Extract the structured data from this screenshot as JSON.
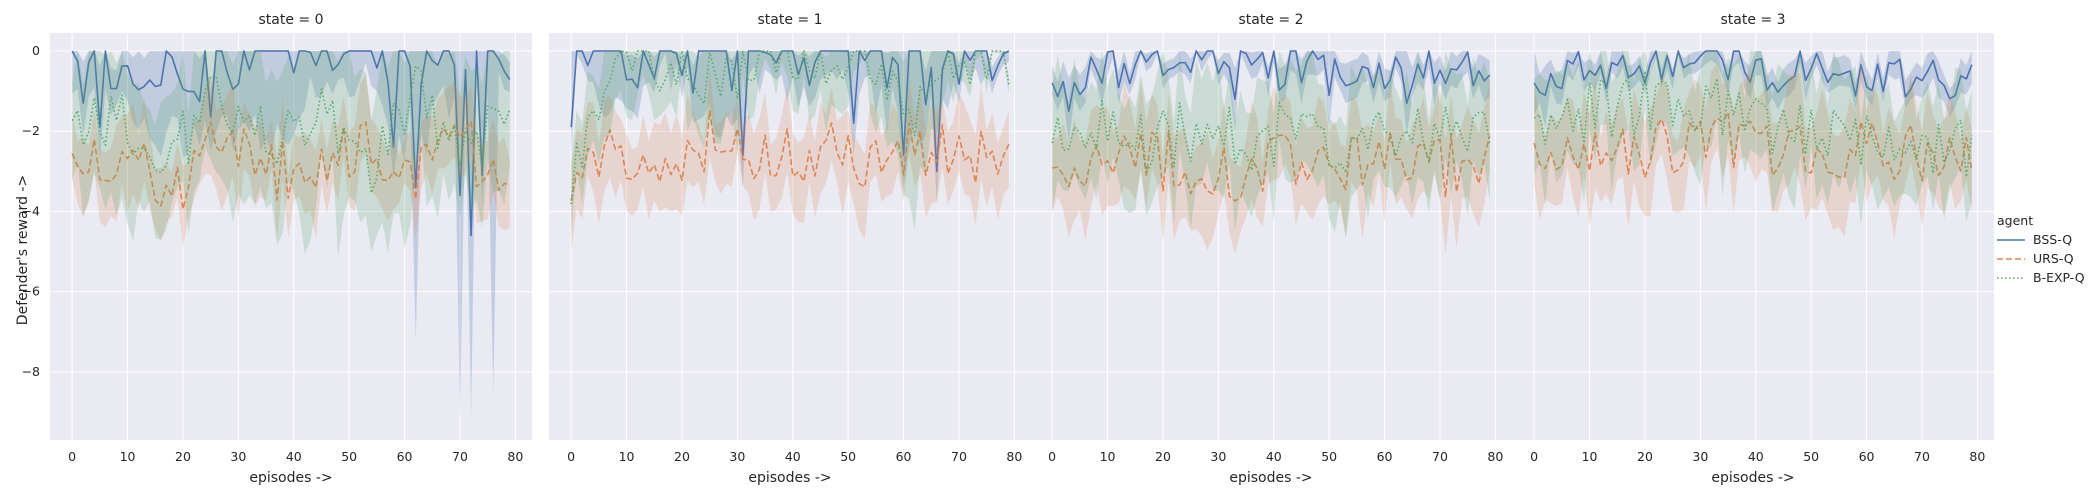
{
  "chart_data": {
    "type": "line",
    "ylabel": "Defender's reward ->",
    "xlabel": "episodes ->",
    "ylim": [
      -9.7,
      0.45
    ],
    "xlim": [
      -4,
      83
    ],
    "xticks": [
      0,
      10,
      20,
      30,
      40,
      50,
      60,
      70,
      80
    ],
    "yticks": [
      0,
      -2,
      -4,
      -6,
      -8
    ],
    "ytick_labels": [
      "0",
      "−2",
      "−4",
      "−6",
      "−8"
    ],
    "grid": true,
    "legend": {
      "title": "agent",
      "placement": "right",
      "entries": [
        "BSS-Q",
        "URS-Q",
        "B-EXP-Q"
      ]
    },
    "colors": {
      "BSS-Q": "#4c72b0",
      "URS-Q": "#dd8452",
      "B-EXP-Q": "#55a868"
    },
    "facet_titles": [
      "state = 0",
      "state = 1",
      "state = 2",
      "state = 3"
    ],
    "panels": [
      {
        "title": "state = 0",
        "series": [
          {
            "name": "BSS-Q",
            "mean_profile": [
              -0.2,
              -0.8,
              -0.3,
              -1.3,
              0,
              -0.6,
              -0.1,
              -0.9,
              0,
              -0.3
            ],
            "band_profile": [
              0.9,
              0.6,
              1.8,
              0.8,
              2.5,
              0.7,
              0.5,
              1.6,
              0.6,
              0.4
            ],
            "dips": [
              [
                2,
                -1.3
              ],
              [
                5,
                -1.9
              ],
              [
                58,
                -2.4
              ],
              [
                62,
                -3.4
              ],
              [
                70,
                -3.6
              ],
              [
                72,
                -4.6
              ],
              [
                74,
                -3.1
              ]
            ],
            "deep": [
              [
                62,
                -7.2
              ],
              [
                70,
                -9.2
              ],
              [
                72,
                -9.1
              ],
              [
                76,
                -8.6
              ]
            ]
          },
          {
            "name": "URS-Q",
            "mean_profile": [
              -2.8,
              -2.4,
              -3.6,
              -2.2,
              -3.1,
              -2.7,
              -2.5,
              -3.3,
              -2.4,
              -3.0
            ],
            "band_profile": [
              0.9,
              1.2,
              0.8,
              1.3,
              0.9,
              1.1,
              1.0,
              0.8,
              1.2,
              1.0
            ]
          },
          {
            "name": "B-EXP-Q",
            "mean_profile": [
              -2.0,
              -1.6,
              -2.8,
              -0.9,
              -2.2,
              -1.4,
              -3.1,
              -1.0,
              -2.5,
              -1.8
            ],
            "band_profile": [
              1.6,
              2.2,
              1.4,
              2.6,
              1.8,
              2.4,
              1.9,
              2.8,
              1.6,
              2.0
            ]
          }
        ]
      },
      {
        "title": "state = 1",
        "series": [
          {
            "name": "BSS-Q",
            "mean_profile": [
              -0.2,
              -0.6,
              -0.1,
              -0.9,
              -0.2,
              -0.4,
              -0.1,
              -1.1,
              -0.3,
              -0.2
            ],
            "band_profile": [
              0.4,
              0.9,
              0.3,
              1.2,
              0.5,
              0.8,
              0.6,
              1.4,
              0.5,
              0.3
            ],
            "dips": [
              [
                0,
                -1.9
              ],
              [
                31,
                -2.6
              ],
              [
                51,
                -1.8
              ],
              [
                60,
                -2.6
              ],
              [
                66,
                -3.0
              ]
            ]
          },
          {
            "name": "URS-Q",
            "mean_profile": [
              -3.0,
              -2.4,
              -2.6,
              -2.2,
              -2.9,
              -2.5,
              -2.7,
              -2.3,
              -2.6,
              -2.5
            ],
            "band_profile": [
              1.1,
              1.0,
              1.3,
              0.9,
              1.2,
              1.0,
              1.1,
              1.0,
              1.2,
              0.9
            ]
          },
          {
            "name": "B-EXP-Q",
            "mean_profile": [
              -3.1,
              -0.5,
              -0.3,
              -0.8,
              -0.1,
              -0.4,
              -0.2,
              -1.5,
              -0.1,
              -0.1
            ],
            "band_profile": [
              1.0,
              1.5,
              0.8,
              1.8,
              0.6,
              1.2,
              0.8,
              2.2,
              0.5,
              0.3
            ]
          }
        ]
      },
      {
        "title": "state = 2",
        "series": [
          {
            "name": "BSS-Q",
            "mean_profile": [
              -0.7,
              -0.5,
              -0.2,
              -0.1,
              -0.3,
              -0.5,
              -0.6,
              -0.4,
              -0.3,
              -0.6
            ],
            "band_profile": [
              0.4,
              0.5,
              0.3,
              0.3,
              0.4,
              0.5,
              0.5,
              0.4,
              0.5,
              0.5
            ],
            "dips": [
              [
                3,
                -1.5
              ],
              [
                33,
                -1.2
              ],
              [
                50,
                -1.1
              ],
              [
                64,
                -1.3
              ]
            ]
          },
          {
            "name": "URS-Q",
            "mean_profile": [
              -2.8,
              -3.0,
              -2.7,
              -2.9,
              -3.1,
              -2.8,
              -2.9,
              -2.6,
              -2.9,
              -2.8
            ],
            "band_profile": [
              1.1,
              1.2,
              1.1,
              1.3,
              1.2,
              1.1,
              1.2,
              1.1,
              1.3,
              1.2
            ]
          },
          {
            "name": "B-EXP-Q",
            "mean_profile": [
              -2.2,
              -2.0,
              -2.4,
              -1.9,
              -2.2,
              -2.0,
              -2.3,
              -2.1,
              -2.2,
              -2.1
            ],
            "band_profile": [
              1.5,
              1.4,
              1.6,
              1.5,
              1.4,
              1.5,
              1.6,
              1.4,
              1.5,
              1.5
            ]
          }
        ]
      },
      {
        "title": "state = 3",
        "series": [
          {
            "name": "BSS-Q",
            "mean_profile": [
              -0.6,
              -0.5,
              -0.4,
              -0.3,
              -0.4,
              -0.5,
              -0.6,
              -0.7,
              -0.7,
              -0.7
            ],
            "band_profile": [
              0.4,
              0.4,
              0.3,
              0.3,
              0.4,
              0.4,
              0.4,
              0.4,
              0.4,
              0.4
            ],
            "dips": [
              [
                0,
                -0.8
              ],
              [
                2,
                -1.1
              ]
            ]
          },
          {
            "name": "URS-Q",
            "mean_profile": [
              -2.8,
              -2.6,
              -2.4,
              -2.5,
              -2.3,
              -2.5,
              -2.6,
              -2.4,
              -2.5,
              -2.6
            ],
            "band_profile": [
              1.3,
              1.2,
              1.2,
              1.1,
              1.2,
              1.3,
              1.4,
              1.3,
              1.2,
              1.2
            ]
          },
          {
            "name": "B-EXP-Q",
            "mean_profile": [
              -2.2,
              -1.6,
              -1.3,
              -1.2,
              -1.4,
              -1.8,
              -2.0,
              -2.2,
              -2.3,
              -2.4
            ],
            "band_profile": [
              1.4,
              1.3,
              1.2,
              1.2,
              1.3,
              1.4,
              1.5,
              1.5,
              1.5,
              1.5
            ]
          }
        ]
      }
    ]
  }
}
